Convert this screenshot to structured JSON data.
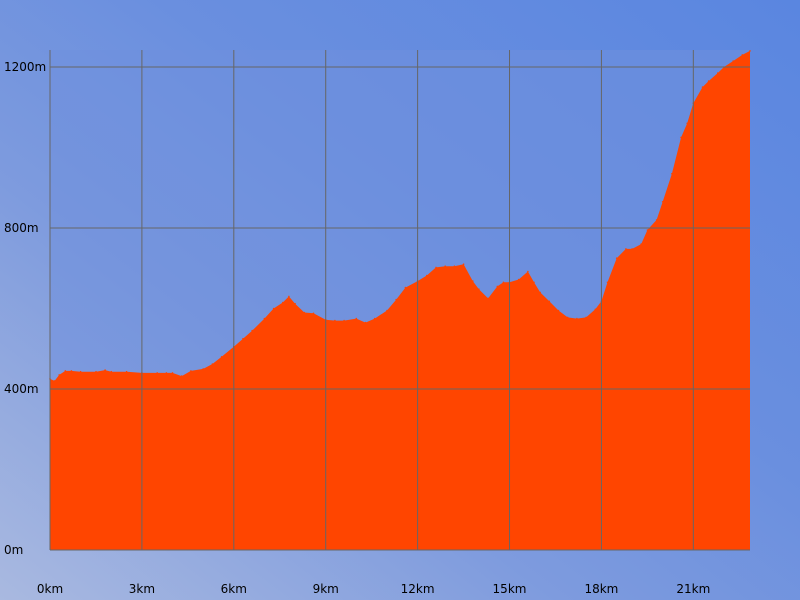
{
  "chart_data": {
    "type": "area",
    "title": "",
    "xlabel": "",
    "ylabel": "",
    "xlim": [
      0,
      22.85
    ],
    "ylim": [
      0,
      1200
    ],
    "grid": true,
    "x_ticks": [
      0,
      3,
      6,
      9,
      12,
      15,
      18,
      21
    ],
    "x_tick_labels": [
      "0km",
      "3km",
      "6km",
      "9km",
      "12km",
      "15km",
      "18km",
      "21km"
    ],
    "y_ticks": [
      0,
      400,
      800,
      1200
    ],
    "y_tick_labels": [
      "0m",
      "400m",
      "800m",
      "1200m"
    ],
    "colors": {
      "fill": "#FF4500",
      "grid": "#666666",
      "plot_bg": "#6f90dc"
    },
    "series": [
      {
        "x": [
          0.0,
          0.15,
          0.3,
          0.5,
          0.7,
          1.0,
          1.5,
          1.8,
          2.0,
          2.5,
          3.0,
          3.5,
          3.8,
          4.0,
          4.3,
          4.6,
          5.0,
          5.3,
          5.6,
          6.0,
          6.3,
          6.6,
          7.0,
          7.3,
          7.6,
          7.8,
          8.0,
          8.3,
          8.6,
          9.0,
          9.3,
          9.6,
          10.0,
          10.3,
          10.6,
          11.0,
          11.3,
          11.6,
          12.0,
          12.3,
          12.6,
          12.9,
          13.2,
          13.5,
          13.8,
          14.0,
          14.3,
          14.6,
          14.8,
          15.0,
          15.3,
          15.6,
          15.8,
          16.0,
          16.3,
          16.6,
          16.9,
          17.2,
          17.5,
          17.8,
          18.0,
          18.2,
          18.5,
          18.8,
          19.0,
          19.3,
          19.5,
          19.8,
          20.0,
          20.3,
          20.6,
          20.8,
          21.0,
          21.3,
          21.5,
          21.8,
          22.0,
          22.3,
          22.6,
          22.85
        ],
        "y": [
          425,
          420,
          435,
          445,
          445,
          443,
          443,
          447,
          443,
          443,
          440,
          440,
          440,
          440,
          432,
          445,
          450,
          462,
          480,
          505,
          525,
          545,
          575,
          600,
          615,
          630,
          612,
          590,
          588,
          572,
          570,
          570,
          575,
          565,
          575,
          595,
          622,
          652,
          668,
          682,
          702,
          705,
          705,
          710,
          668,
          648,
          625,
          655,
          665,
          665,
          672,
          692,
          665,
          640,
          618,
          595,
          578,
          575,
          578,
          598,
          618,
          665,
          725,
          748,
          748,
          760,
          795,
          820,
          865,
          935,
          1025,
          1060,
          1110,
          1150,
          1165,
          1185,
          1200,
          1215,
          1230,
          1240
        ]
      }
    ]
  }
}
